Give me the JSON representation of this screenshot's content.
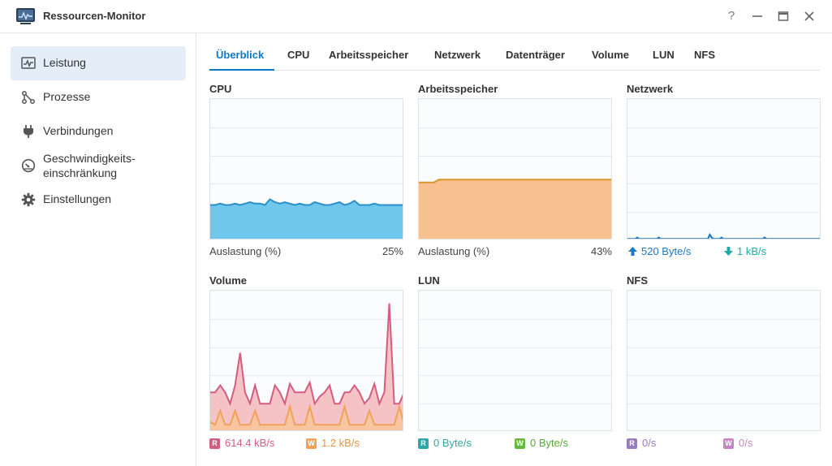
{
  "window": {
    "title": "Ressourcen-Monitor",
    "help_glyph": "?"
  },
  "sidebar": {
    "items": [
      {
        "label": "Leistung",
        "icon": "performance-icon"
      },
      {
        "label": "Prozesse",
        "icon": "processes-icon"
      },
      {
        "label": "Verbindungen",
        "icon": "plug-icon"
      },
      {
        "label_line1": "Geschwindigkeits-",
        "label_line2": "einschränkung",
        "icon": "speedometer-icon"
      },
      {
        "label": "Einstellungen",
        "icon": "gear-icon"
      }
    ]
  },
  "tabs": [
    "Überblick",
    "CPU",
    "Arbeitsspeicher",
    "Netzwerk",
    "Datenträger",
    "Volume",
    "LUN",
    "NFS"
  ],
  "panels": {
    "cpu": {
      "title": "CPU",
      "label": "Auslastung  (%)",
      "value": "25%"
    },
    "memory": {
      "title": "Arbeitsspeicher",
      "label": "Auslastung  (%)",
      "value": "43%"
    },
    "network": {
      "title": "Netzwerk",
      "up": "520 Byte/s",
      "down": "1 kB/s"
    },
    "volume": {
      "title": "Volume",
      "read_badge": "R",
      "read": "614.4 kB/s",
      "write_badge": "W",
      "write": "1.2 kB/s"
    },
    "lun": {
      "title": "LUN",
      "read_badge": "R",
      "read": "0 Byte/s",
      "write_badge": "W",
      "write": "0 Byte/s"
    },
    "nfs": {
      "title": "NFS",
      "read_badge": "R",
      "read": "0/s",
      "write_badge": "W",
      "write": "0/s"
    }
  },
  "colors": {
    "accent": "#0d79c6",
    "cpu_line": "#2a8fc9",
    "cpu_fill": "#6fc7ec",
    "mem_line": "#d9952e",
    "mem_fill": "#f6c08f",
    "net_line": "#1f78c2",
    "vol_read": "#d45d7f",
    "vol_read_fill": "#f5c2c6",
    "vol_write": "#f0a15b",
    "vol_write_fill": "#f7c6a1",
    "lun_read": "#2fa7a5",
    "lun_write": "#67b83c",
    "nfs_read": "#9a7bbd",
    "nfs_write": "#c883c8"
  },
  "chart_data": [
    {
      "type": "area",
      "title": "CPU",
      "ylim": [
        0,
        100
      ],
      "values": [
        25,
        25,
        26,
        25,
        25,
        26,
        25,
        26,
        27,
        26,
        26,
        25,
        29,
        27,
        26,
        27,
        26,
        25,
        26,
        25,
        25,
        27,
        26,
        25,
        25,
        26,
        27,
        25,
        26,
        28,
        25,
        25,
        25,
        26,
        25,
        25,
        25,
        25,
        25,
        25
      ]
    },
    {
      "type": "area",
      "title": "Arbeitsspeicher",
      "ylim": [
        0,
        100
      ],
      "values": [
        41,
        41,
        41,
        41,
        43,
        43,
        43,
        43,
        43,
        43,
        43,
        43,
        43,
        43,
        43,
        43,
        43,
        43,
        43,
        43,
        43,
        43,
        43,
        43,
        43,
        43,
        43,
        43,
        43,
        43,
        43,
        43,
        43,
        43,
        43,
        43,
        43,
        43,
        43,
        43
      ]
    },
    {
      "type": "line",
      "title": "Netzwerk",
      "ylim": [
        0,
        100
      ],
      "values": [
        1,
        1,
        1,
        1,
        1,
        2,
        1,
        1,
        1,
        1,
        1,
        1,
        1,
        1,
        1,
        1,
        2,
        1,
        1,
        1,
        1,
        1,
        1,
        1,
        1,
        1,
        1,
        1,
        1,
        1,
        1,
        1,
        1,
        1,
        1,
        1,
        1,
        1,
        1,
        1,
        1,
        1,
        4,
        2,
        1,
        1,
        1,
        1,
        2,
        1,
        1,
        1,
        1,
        1,
        1,
        1,
        1,
        1,
        1,
        1,
        1,
        1,
        1,
        1,
        1,
        1,
        1,
        1,
        1,
        1,
        2,
        1,
        1,
        1,
        1,
        1,
        1,
        1,
        1,
        1,
        1,
        1,
        1,
        1,
        1,
        1,
        1,
        1,
        1,
        1,
        1,
        1,
        1,
        1,
        1,
        1,
        1,
        1,
        1,
        1
      ]
    },
    {
      "type": "area",
      "title": "Volume",
      "ylim": [
        0,
        100
      ],
      "series": [
        {
          "name": "R",
          "values": [
            28,
            28,
            33,
            28,
            20,
            33,
            56,
            28,
            20,
            33,
            20,
            20,
            20,
            33,
            28,
            20,
            34,
            28,
            28,
            28,
            35,
            20,
            25,
            28,
            33,
            20,
            20,
            28,
            28,
            33,
            28,
            20,
            24,
            34,
            20,
            28,
            91,
            20,
            20,
            28
          ]
        },
        {
          "name": "W",
          "values": [
            7,
            5,
            15,
            5,
            5,
            15,
            5,
            5,
            5,
            15,
            5,
            5,
            5,
            5,
            5,
            5,
            18,
            5,
            5,
            5,
            18,
            5,
            5,
            5,
            5,
            5,
            5,
            18,
            5,
            5,
            5,
            5,
            15,
            5,
            5,
            5,
            5,
            5,
            18,
            5
          ]
        }
      ]
    },
    {
      "type": "line",
      "title": "LUN",
      "ylim": [
        0,
        100
      ],
      "series": [
        {
          "name": "R",
          "values": [
            0,
            0
          ]
        },
        {
          "name": "W",
          "values": [
            0,
            0
          ]
        }
      ]
    },
    {
      "type": "line",
      "title": "NFS",
      "ylim": [
        0,
        100
      ],
      "series": [
        {
          "name": "R",
          "values": [
            0,
            0
          ]
        },
        {
          "name": "W",
          "values": [
            0,
            0
          ]
        }
      ]
    }
  ]
}
